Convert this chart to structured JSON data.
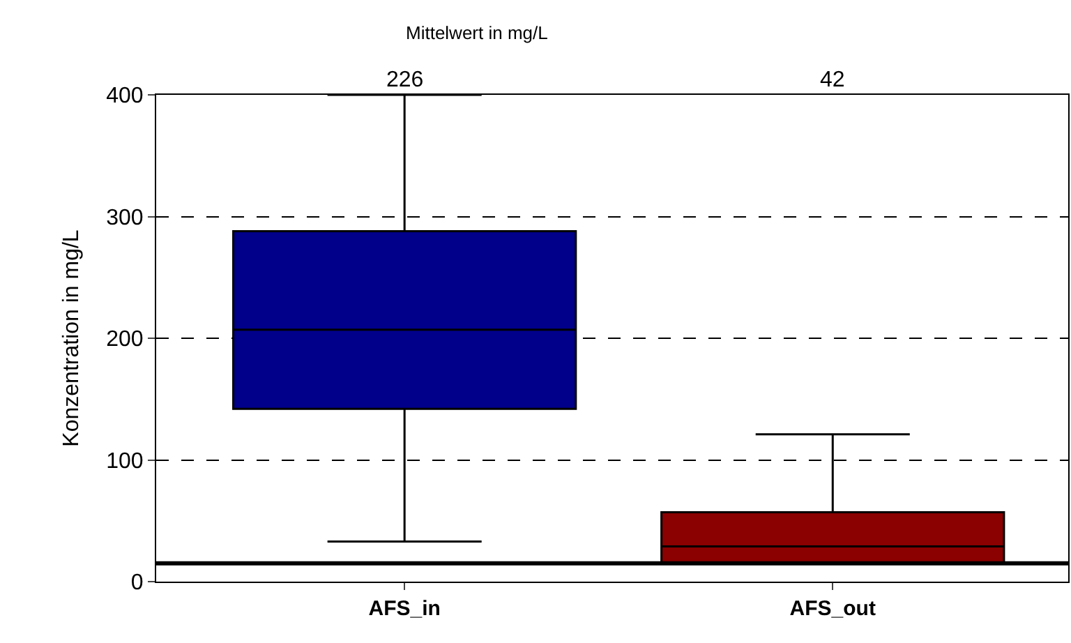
{
  "chart_data": {
    "type": "box",
    "ylabel": "Konzentration in mg/L",
    "categories": [
      "AFS_in",
      "AFS_out"
    ],
    "boxes": [
      {
        "low": 33,
        "q1": 142,
        "median": 207,
        "q3": 288,
        "high": 400
      },
      {
        "low": 15,
        "q1": 15,
        "median": 29,
        "q3": 57,
        "high": 121
      }
    ],
    "colors": [
      "#00008b",
      "#8b0000"
    ],
    "value_labels": [
      "226",
      "42"
    ],
    "annotations": [
      "Mittelwert in mg/L"
    ],
    "ref_lines": [
      {
        "axis": "y",
        "value": 15,
        "color": "#000000"
      }
    ],
    "ylim": [
      0,
      400
    ],
    "yticks": [
      0,
      100,
      200,
      300,
      400
    ],
    "grid": "y"
  }
}
